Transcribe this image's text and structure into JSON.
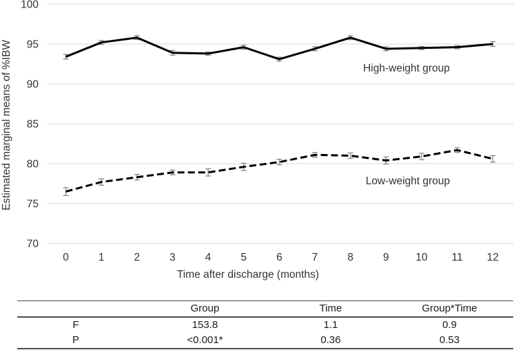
{
  "colors": {
    "line": "#000000",
    "grid": "#d9d9d9",
    "chart_text": "#333333",
    "error_bar": "#7f7f7f",
    "table_text": "#1a1a1a",
    "table_rule": "#4d4d4d",
    "background": "#ffffff"
  },
  "chart_data": {
    "type": "line",
    "title": "",
    "xlabel": "Time after discharge (months)",
    "ylabel": "Estimated marginal means of %IBW",
    "x": [
      0,
      1,
      2,
      3,
      4,
      5,
      6,
      7,
      8,
      9,
      10,
      11,
      12
    ],
    "x_tick_labels": [
      "0",
      "1",
      "2",
      "3",
      "4",
      "5",
      "6",
      "7",
      "8",
      "9",
      "10",
      "11",
      "12"
    ],
    "ylim": [
      70,
      100
    ],
    "yticks": [
      70,
      75,
      80,
      85,
      90,
      95,
      100
    ],
    "grid": "horizontal-only",
    "legend_position": "inline-annotations",
    "series": [
      {
        "name": "High-weight group",
        "line_style": "solid",
        "marker": "error-bar-caps",
        "values": [
          93.4,
          95.2,
          95.8,
          93.9,
          93.8,
          94.6,
          93.1,
          94.4,
          95.8,
          94.4,
          94.5,
          94.6,
          95.0
        ],
        "errors": [
          0.3,
          0.25,
          0.25,
          0.3,
          0.2,
          0.25,
          0.25,
          0.25,
          0.25,
          0.25,
          0.2,
          0.2,
          0.3
        ]
      },
      {
        "name": "Low-weight group",
        "line_style": "dashed",
        "marker": "error-bar-caps",
        "values": [
          76.5,
          77.7,
          78.3,
          78.9,
          78.9,
          79.6,
          80.2,
          81.1,
          81.0,
          80.4,
          80.9,
          81.7,
          80.6
        ],
        "errors": [
          0.5,
          0.4,
          0.35,
          0.3,
          0.45,
          0.45,
          0.35,
          0.3,
          0.35,
          0.45,
          0.4,
          0.3,
          0.4
        ]
      }
    ]
  },
  "table": {
    "columns": [
      "",
      "Group",
      "Time",
      "Group*Time"
    ],
    "rows": [
      {
        "label": "F",
        "cells": [
          "153.8",
          "1.1",
          "0.9"
        ]
      },
      {
        "label": "P",
        "cells": [
          "<0.001*",
          "0.36",
          "0.53"
        ]
      }
    ]
  }
}
